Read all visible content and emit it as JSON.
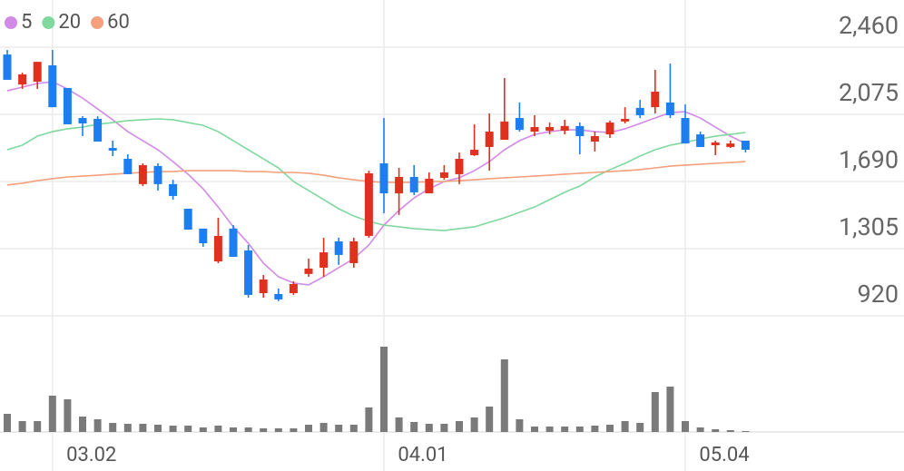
{
  "chart_data": {
    "type": "candlestick",
    "categories": [
      null,
      null,
      null,
      "03.02",
      null,
      null,
      null,
      null,
      null,
      null,
      null,
      null,
      null,
      null,
      null,
      null,
      null,
      null,
      null,
      null,
      null,
      null,
      null,
      null,
      null,
      "04.01",
      null,
      null,
      null,
      null,
      null,
      null,
      null,
      null,
      null,
      null,
      null,
      null,
      null,
      null,
      null,
      null,
      null,
      null,
      null,
      "05.04",
      null,
      null,
      null,
      null
    ],
    "ohlc": {
      "open": [
        2418,
        2246,
        2262,
        2356,
        2226,
        2054,
        2049,
        1882,
        1820,
        1675,
        1779,
        1675,
        1534,
        1420,
        1232,
        1420,
        1295,
        1050,
        1045,
        1050,
        1160,
        1196,
        1347,
        1222,
        1378,
        1794,
        1622,
        1716,
        1622,
        1711,
        1732,
        1841,
        1888,
        1929,
        2054,
        1976,
        1981,
        1981,
        2008,
        1919,
        1960,
        2034,
        2112,
        2116,
        2143,
        2054,
        1960,
        1898,
        1888,
        1924
      ],
      "high": [
        2444,
        2314,
        2376,
        2444,
        2226,
        2064,
        2064,
        1924,
        1846,
        1794,
        1794,
        1700,
        1534,
        1420,
        1482,
        1440,
        1326,
        1154,
        1076,
        1118,
        1248,
        1368,
        1368,
        1368,
        1752,
        2054,
        1768,
        1784,
        1742,
        1784,
        1856,
        2018,
        2080,
        2283,
        2143,
        2070,
        2028,
        2044,
        2028,
        1976,
        2039,
        2116,
        2158,
        2330,
        2366,
        2132,
        1976,
        1924,
        1924,
        1924
      ],
      "low": [
        2273,
        2221,
        2221,
        2116,
        2018,
        1950,
        1919,
        1836,
        1732,
        1664,
        1638,
        1586,
        1414,
        1316,
        1222,
        1258,
        1024,
        1024,
        1004,
        1040,
        1144,
        1144,
        1212,
        1196,
        1368,
        1508,
        1498,
        1612,
        1622,
        1700,
        1675,
        1836,
        1752,
        1929,
        1976,
        1950,
        1960,
        1960,
        1846,
        1862,
        1940,
        2023,
        2054,
        2080,
        2054,
        1908,
        1888,
        1841,
        1882,
        1856
      ],
      "close": [
        2273,
        2304,
        2376,
        2116,
        2018,
        2023,
        1919,
        1867,
        1732,
        1784,
        1675,
        1607,
        1414,
        1336,
        1378,
        1258,
        1040,
        1128,
        1014,
        1102,
        1191,
        1284,
        1269,
        1347,
        1737,
        1622,
        1716,
        1628,
        1706,
        1742,
        1820,
        1872,
        1976,
        2034,
        1986,
        2002,
        2002,
        2008,
        1950,
        1950,
        2028,
        2049,
        2070,
        2205,
        2070,
        1908,
        1888,
        1914,
        1908,
        1872
      ]
    },
    "up_color": "#e0301e",
    "down_color": "#1c7ef0",
    "moving_averages": [
      {
        "name": "5",
        "color": "#d28ae6",
        "values": [
          2210,
          2231,
          2252,
          2262,
          2220,
          2168,
          2106,
          2044,
          1976,
          1924,
          1872,
          1804,
          1732,
          1648,
          1544,
          1430,
          1336,
          1222,
          1144,
          1108,
          1097,
          1144,
          1196,
          1248,
          1326,
          1440,
          1524,
          1596,
          1648,
          1690,
          1711,
          1752,
          1804,
          1872,
          1924,
          1960,
          1976,
          1986,
          1986,
          1976,
          1971,
          1992,
          2023,
          2054,
          2085,
          2090,
          2054,
          2002,
          1950,
          1908
        ]
      },
      {
        "name": "20",
        "color": "#7fd89e",
        "values": [
          1872,
          1898,
          1950,
          1976,
          1992,
          2002,
          2018,
          2028,
          2039,
          2044,
          2049,
          2044,
          2028,
          2012,
          1976,
          1924,
          1872,
          1820,
          1768,
          1690,
          1638,
          1586,
          1534,
          1492,
          1461,
          1440,
          1430,
          1420,
          1414,
          1409,
          1420,
          1430,
          1456,
          1482,
          1513,
          1544,
          1586,
          1628,
          1664,
          1716,
          1758,
          1794,
          1836,
          1872,
          1898,
          1914,
          1934,
          1950,
          1960,
          1971
        ]
      },
      {
        "name": "60",
        "color": "#f4a07c",
        "values": [
          1670,
          1680,
          1695,
          1706,
          1716,
          1721,
          1726,
          1732,
          1737,
          1742,
          1747,
          1747,
          1752,
          1752,
          1752,
          1752,
          1747,
          1747,
          1742,
          1742,
          1737,
          1726,
          1711,
          1700,
          1690,
          1685,
          1685,
          1685,
          1690,
          1690,
          1695,
          1700,
          1706,
          1711,
          1716,
          1721,
          1726,
          1732,
          1737,
          1742,
          1747,
          1752,
          1758,
          1768,
          1778,
          1784,
          1789,
          1794,
          1799,
          1804
        ]
      }
    ],
    "volume": {
      "color": "#7a7a7a",
      "values": [
        20,
        12,
        12,
        40,
        36,
        17,
        14,
        10,
        9,
        9,
        8,
        7,
        7,
        5,
        7,
        5,
        5,
        4,
        4,
        4,
        8,
        10,
        8,
        8,
        27,
        94,
        16,
        11,
        9,
        9,
        12,
        16,
        28,
        80,
        14,
        6,
        6,
        6,
        6,
        7,
        8,
        12,
        10,
        44,
        50,
        12,
        5,
        3,
        2,
        1
      ]
    },
    "ylim": [
      920,
      2460
    ],
    "yticks": [
      {
        "value": 2460,
        "label": "2,460"
      },
      {
        "value": 2075,
        "label": "2,075"
      },
      {
        "value": 1690,
        "label": "1,690"
      },
      {
        "value": 1305,
        "label": "1,305"
      },
      920
    ],
    "grid": true
  }
}
